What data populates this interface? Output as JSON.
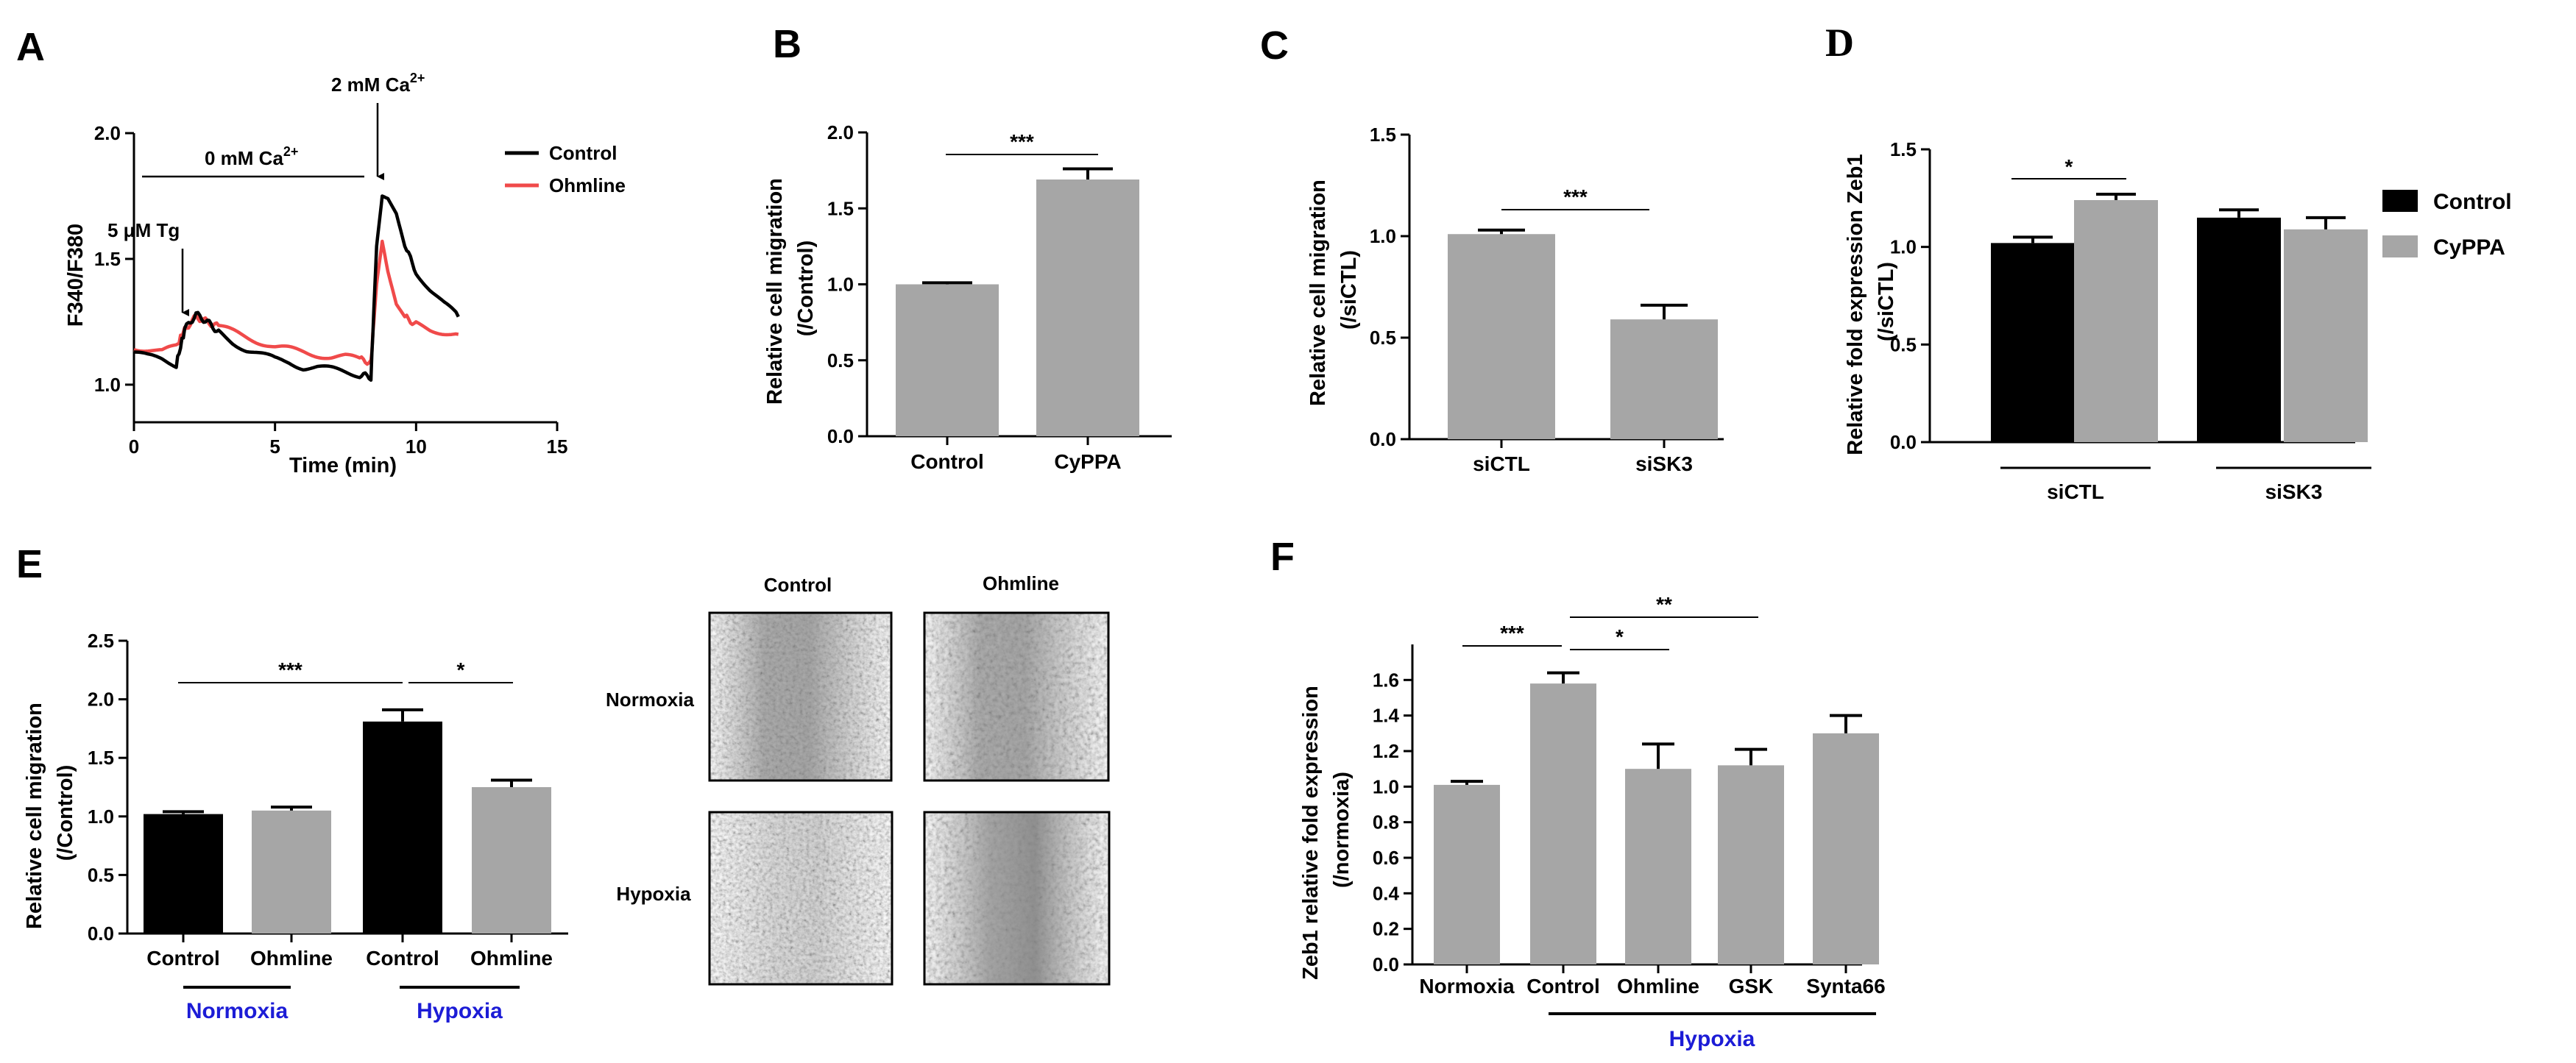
{
  "colors": {
    "black": "#000000",
    "gray": "#a6a6a6",
    "red": "#f04a4a",
    "blue": "#1c1cd6",
    "err": "#000000"
  },
  "chart_data": [
    {
      "panel": "A",
      "type": "line",
      "xlabel": "Time (min)",
      "ylabel": "F340/F380",
      "xlim": [
        0,
        15
      ],
      "ylim": [
        0.95,
        2.0
      ],
      "xticks": [
        "0",
        "5",
        "10",
        "15"
      ],
      "yticks": [
        "1.0",
        "1.5",
        "2.0"
      ],
      "legend": [
        "Control",
        "Ohmline"
      ],
      "legend_position": "top-right",
      "annotations": {
        "zero_ca": "0 mM Ca",
        "two_ca": "2 mM Ca",
        "sup": "2+",
        "tg": "5 μM Tg"
      },
      "series": [
        {
          "name": "Control",
          "x": [
            0,
            0.5,
            1,
            1.5,
            1.8,
            2.2,
            2.6,
            3,
            3.5,
            4,
            4.5,
            5,
            5.5,
            6,
            6.5,
            7,
            7.5,
            8,
            8.4,
            8.6,
            8.8,
            9.0,
            9.3,
            9.6,
            10,
            10.5,
            11,
            11.5
          ],
          "y": [
            1.13,
            1.11,
            1.1,
            1.08,
            1.22,
            1.28,
            1.25,
            1.21,
            1.17,
            1.14,
            1.12,
            1.1,
            1.09,
            1.07,
            1.07,
            1.06,
            1.05,
            1.04,
            1.03,
            1.55,
            1.75,
            1.74,
            1.68,
            1.55,
            1.45,
            1.38,
            1.32,
            1.27
          ]
        },
        {
          "name": "Ohmline",
          "x": [
            0,
            0.5,
            1,
            1.5,
            1.8,
            2.2,
            2.6,
            3,
            3.5,
            4,
            4.5,
            5,
            5.5,
            6,
            6.5,
            7,
            7.5,
            8,
            8.4,
            8.6,
            8.8,
            9.0,
            9.3,
            9.6,
            10,
            10.5,
            11,
            11.5
          ],
          "y": [
            1.15,
            1.14,
            1.13,
            1.15,
            1.22,
            1.27,
            1.25,
            1.23,
            1.21,
            1.19,
            1.17,
            1.15,
            1.14,
            1.13,
            1.12,
            1.11,
            1.11,
            1.1,
            1.09,
            1.4,
            1.57,
            1.45,
            1.32,
            1.27,
            1.24,
            1.22,
            1.21,
            1.2
          ]
        }
      ]
    },
    {
      "panel": "B",
      "type": "bar",
      "categories": [
        "Control",
        "CyPPA"
      ],
      "values": [
        1.0,
        1.69
      ],
      "errors": [
        0.01,
        0.07
      ],
      "ylabel": "Relative cell migration",
      "ylabel2": "(/Control)",
      "ylim": [
        0,
        2.0
      ],
      "yticks": [
        "0.0",
        "0.5",
        "1.0",
        "1.5",
        "2.0"
      ],
      "significance": [
        {
          "between": [
            0,
            1
          ],
          "label": "***"
        }
      ]
    },
    {
      "panel": "C",
      "type": "bar",
      "categories": [
        "siCTL",
        "siSK3"
      ],
      "values": [
        1.01,
        0.59
      ],
      "errors": [
        0.02,
        0.07
      ],
      "ylabel": "Relative cell migration",
      "ylabel2": "(/siCTL)",
      "ylim": [
        0,
        1.5
      ],
      "yticks": [
        "0.0",
        "0.5",
        "1.0",
        "1.5"
      ],
      "significance": [
        {
          "between": [
            0,
            1
          ],
          "label": "***"
        }
      ]
    },
    {
      "panel": "D",
      "type": "bar",
      "groups": [
        "siCTL",
        "siSK3"
      ],
      "legend": [
        "Control",
        "CyPPA"
      ],
      "legend_position": "right",
      "series": [
        {
          "name": "Control",
          "values": [
            1.02,
            1.15
          ],
          "errors": [
            0.03,
            0.04
          ]
        },
        {
          "name": "CyPPA",
          "values": [
            1.24,
            1.09
          ],
          "errors": [
            0.03,
            0.06
          ]
        }
      ],
      "ylabel": "Relative fold expression Zeb1",
      "ylabel2": "(/siCTL)",
      "ylim": [
        0,
        1.5
      ],
      "yticks": [
        "0.0",
        "0.5",
        "1.0",
        "1.5"
      ],
      "significance": [
        {
          "label": "*"
        }
      ]
    },
    {
      "panel": "E",
      "type": "bar",
      "categories": [
        "Control",
        "Ohmline",
        "Control",
        "Ohmline"
      ],
      "groups": [
        "Normoxia",
        "Hypoxia"
      ],
      "values": [
        1.02,
        1.05,
        1.81,
        1.25
      ],
      "errors": [
        0.02,
        0.03,
        0.1,
        0.06
      ],
      "ylabel": "Relative cell migration",
      "ylabel2": "(/Control)",
      "ylim": [
        0,
        2.5
      ],
      "yticks": [
        "0.0",
        "0.5",
        "1.0",
        "1.5",
        "2.0",
        "2.5"
      ],
      "significance": [
        {
          "label": "***"
        },
        {
          "label": "*"
        }
      ],
      "images": {
        "columns": [
          "Control",
          "Ohmline"
        ],
        "rows": [
          "Normoxia",
          "Hypoxia"
        ]
      }
    },
    {
      "panel": "F",
      "type": "bar",
      "categories": [
        "Normoxia",
        "Control",
        "Ohmline",
        "GSK",
        "Synta66"
      ],
      "values": [
        1.01,
        1.58,
        1.1,
        1.12,
        1.3
      ],
      "errors": [
        0.02,
        0.06,
        0.14,
        0.09,
        0.1
      ],
      "ylabel": "Zeb1 relative fold expression",
      "ylabel2": "(/normoxia)",
      "ylim": [
        0,
        1.8
      ],
      "yticks": [
        "0.0",
        "0.2",
        "0.4",
        "0.6",
        "0.8",
        "1.0",
        "1.2",
        "1.4",
        "1.6"
      ],
      "group": "Hypoxia",
      "significance": [
        {
          "label": "***"
        },
        {
          "label": "*"
        },
        {
          "label": "**"
        }
      ]
    }
  ]
}
